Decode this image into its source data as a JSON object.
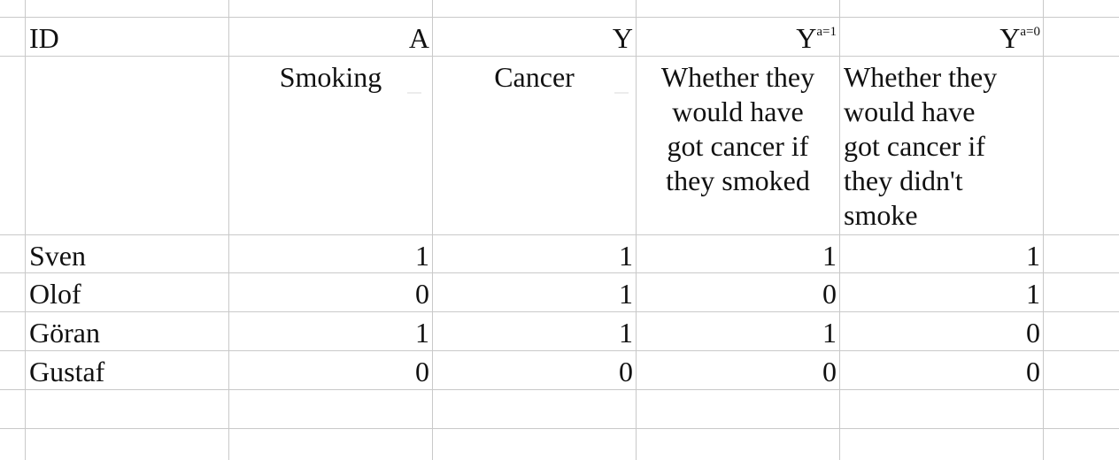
{
  "headers": {
    "id": "ID",
    "a": "A",
    "y": "Y",
    "y1_base": "Y",
    "y1_sup": "a=1",
    "y0_base": "Y",
    "y0_sup": "a=0"
  },
  "descriptions": {
    "a": "Smoking",
    "y": "Cancer",
    "y1_lines": [
      "Whether they",
      "would have",
      "got cancer if",
      "they smoked"
    ],
    "y0_lines": [
      "Whether they",
      "would have",
      "got cancer if",
      "they didn't",
      "smoke"
    ]
  },
  "rows": [
    {
      "id": "Sven",
      "a": "1",
      "y": "1",
      "y1": "1",
      "y0": "1"
    },
    {
      "id": "Olof",
      "a": "0",
      "y": "1",
      "y1": "0",
      "y0": "1"
    },
    {
      "id": "Göran",
      "a": "1",
      "y": "1",
      "y1": "1",
      "y0": "0"
    },
    {
      "id": "Gustaf",
      "a": "0",
      "y": "0",
      "y1": "0",
      "y0": "0"
    }
  ]
}
